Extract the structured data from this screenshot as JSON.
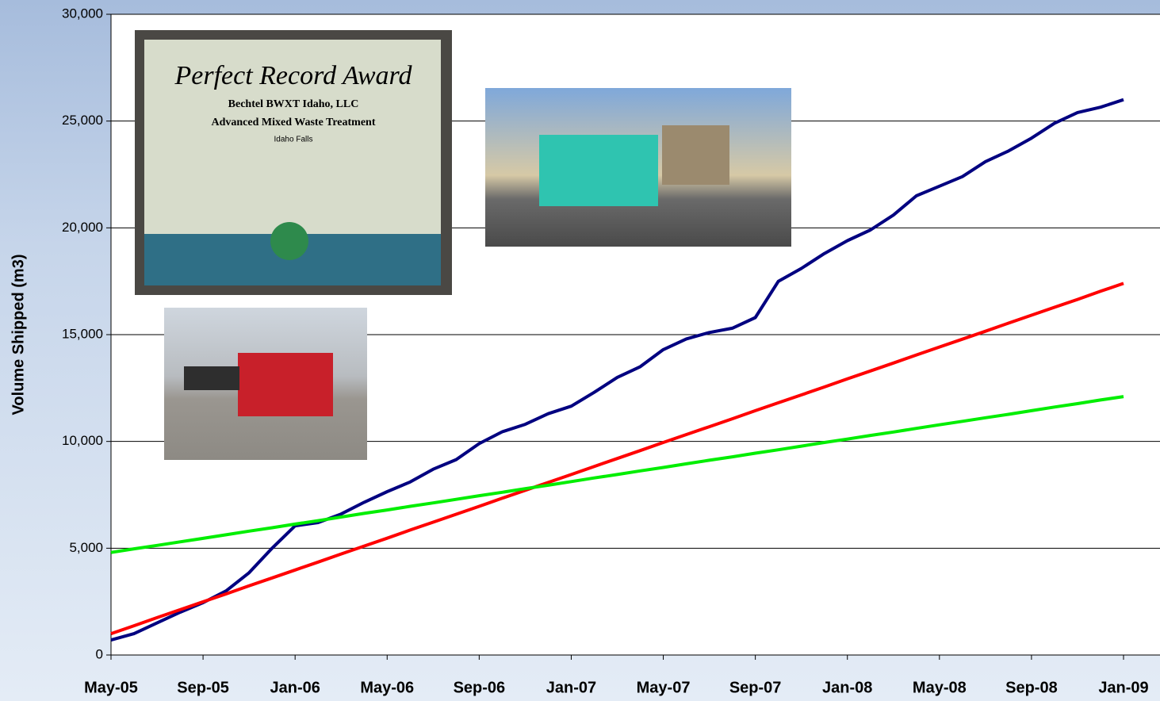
{
  "chart_data": {
    "type": "line",
    "y_label": "Volume Shipped (m3)",
    "categories": [
      "May-05",
      null,
      null,
      null,
      "Sep-05",
      null,
      null,
      null,
      "Jan-06",
      null,
      null,
      null,
      "May-06",
      null,
      null,
      null,
      "Sep-06",
      null,
      null,
      null,
      "Jan-07",
      null,
      null,
      null,
      "May-07",
      null,
      null,
      null,
      "Sep-07",
      null,
      null,
      null,
      "Jan-08",
      null,
      null,
      null,
      "May-08",
      null,
      null,
      null,
      "Sep-08",
      null,
      null,
      null,
      "Jan-09"
    ],
    "series": [
      {
        "color": "#000080",
        "values": [
          700,
          1000,
          1500,
          2000,
          2450,
          3000,
          3850,
          5000,
          6050,
          6200,
          6600,
          7150,
          7650,
          8100,
          8700,
          9150,
          9900,
          10450,
          10800,
          11300,
          11650,
          12300,
          13000,
          13500,
          14300,
          14800,
          15100,
          15300,
          15800,
          17500,
          18100,
          18800,
          19400,
          19900,
          20600,
          21500,
          21950,
          22400,
          23100,
          23600,
          24200,
          24900,
          25400,
          25650,
          26000
        ]
      },
      {
        "color": "#ff0000",
        "values": [
          1000,
          1370,
          1750,
          2120,
          2490,
          2860,
          3240,
          3610,
          3980,
          4350,
          4730,
          5100,
          5470,
          5850,
          6220,
          6590,
          6960,
          7340,
          7710,
          8080,
          8450,
          8830,
          9200,
          9570,
          9950,
          10320,
          10690,
          11060,
          11440,
          11810,
          12180,
          12550,
          12930,
          13300,
          13670,
          14050,
          14420,
          14790,
          15160,
          15540,
          15910,
          16280,
          16650,
          17030,
          17400
        ]
      },
      {
        "color": "#00ee00",
        "values": [
          4800,
          4970,
          5130,
          5300,
          5460,
          5630,
          5800,
          5960,
          6130,
          6290,
          6460,
          6630,
          6790,
          6960,
          7120,
          7290,
          7460,
          7620,
          7790,
          7950,
          8120,
          8290,
          8450,
          8620,
          8780,
          8950,
          9120,
          9280,
          9450,
          9610,
          9780,
          9950,
          10110,
          10280,
          10440,
          10610,
          10780,
          10940,
          11110,
          11270,
          11440,
          11610,
          11770,
          11940,
          12100
        ]
      }
    ],
    "ylim": [
      0,
      30000
    ],
    "yticks": [
      0,
      {
        "value": 5000,
        "label": "5,000"
      },
      {
        "value": 10000,
        "label": "10,000"
      },
      {
        "value": 15000,
        "label": "15,000"
      },
      {
        "value": 20000,
        "label": "20,000"
      },
      {
        "value": 25000,
        "label": "25,000"
      },
      {
        "value": 30000,
        "label": "30,000"
      }
    ],
    "grid": true
  },
  "plaque": {
    "title": "Perfect Record Award",
    "line1": "Bechtel BWXT Idaho, LLC",
    "line2": "Advanced Mixed Waste Treatment",
    "line3": "Idaho Falls"
  }
}
